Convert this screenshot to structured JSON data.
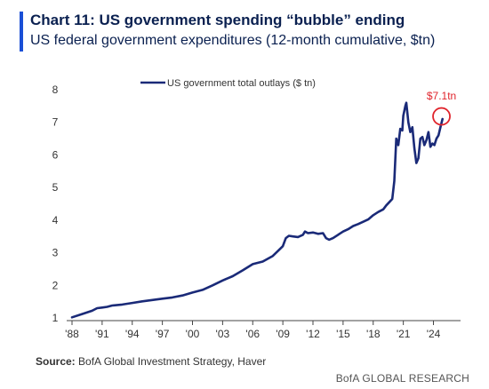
{
  "colors": {
    "accent": "#1a4fd6",
    "series": "#1a2a78",
    "highlight": "#e0242c"
  },
  "chart_data": {
    "type": "line",
    "title": "Chart 11: US government spending “bubble” ending",
    "subtitle": "US federal government expenditures (12-month cumulative, $tn)",
    "legend": "US government total outlays ($ tn)",
    "legend_position": "top-left",
    "grid": false,
    "ylim": [
      1,
      8
    ],
    "yticks": [
      "1",
      "2",
      "3",
      "4",
      "5",
      "6",
      "7",
      "8"
    ],
    "xlim": [
      1988,
      2026.7
    ],
    "xticks": [
      "'88",
      "'91",
      "'94",
      "'97",
      "'00",
      "'03",
      "'06",
      "'09",
      "'12",
      "'15",
      "'18",
      "'21",
      "'24"
    ],
    "annotation": {
      "label": "$7.1tn",
      "x": 2024.8,
      "y": 7.1
    },
    "series": [
      {
        "name": "US government total outlays ($ tn)",
        "x": [
          1988.0,
          1989.0,
          1990.0,
          1990.5,
          1991.0,
          1991.5,
          1992.0,
          1993.0,
          1994.0,
          1995.0,
          1996.0,
          1997.0,
          1998.0,
          1999.0,
          2000.0,
          2001.0,
          2002.0,
          2003.0,
          2004.0,
          2005.0,
          2006.0,
          2007.0,
          2008.0,
          2008.5,
          2009.0,
          2009.3,
          2009.6,
          2010.0,
          2010.5,
          2011.0,
          2011.2,
          2011.5,
          2012.0,
          2012.5,
          2013.0,
          2013.3,
          2013.6,
          2014.0,
          2014.5,
          2015.0,
          2015.5,
          2016.0,
          2016.5,
          2017.0,
          2017.5,
          2018.0,
          2018.5,
          2019.0,
          2019.3,
          2019.6,
          2019.9,
          2020.1,
          2020.3,
          2020.5,
          2020.7,
          2020.9,
          2021.0,
          2021.2,
          2021.3,
          2021.5,
          2021.7,
          2021.9,
          2022.1,
          2022.3,
          2022.5,
          2022.7,
          2022.9,
          2023.1,
          2023.3,
          2023.5,
          2023.7,
          2023.9,
          2024.1,
          2024.3,
          2024.5,
          2024.7,
          2024.9
        ],
        "values": [
          1.02,
          1.12,
          1.22,
          1.3,
          1.32,
          1.34,
          1.38,
          1.41,
          1.46,
          1.51,
          1.55,
          1.59,
          1.63,
          1.69,
          1.78,
          1.86,
          2.0,
          2.15,
          2.28,
          2.46,
          2.65,
          2.73,
          2.9,
          3.05,
          3.2,
          3.45,
          3.52,
          3.5,
          3.48,
          3.55,
          3.65,
          3.6,
          3.62,
          3.58,
          3.6,
          3.45,
          3.4,
          3.45,
          3.55,
          3.65,
          3.72,
          3.82,
          3.88,
          3.95,
          4.02,
          4.15,
          4.25,
          4.33,
          4.45,
          4.55,
          4.65,
          5.2,
          6.5,
          6.3,
          6.8,
          6.75,
          7.2,
          7.5,
          7.6,
          7.0,
          6.7,
          6.85,
          6.2,
          5.75,
          5.9,
          6.5,
          6.55,
          6.3,
          6.45,
          6.7,
          6.25,
          6.35,
          6.3,
          6.5,
          6.6,
          6.85,
          7.1
        ]
      }
    ]
  },
  "footer": {
    "source_label": "Source:",
    "source_text": "BofA Global Investment Strategy, Haver",
    "brand": "BofA GLOBAL RESEARCH"
  }
}
